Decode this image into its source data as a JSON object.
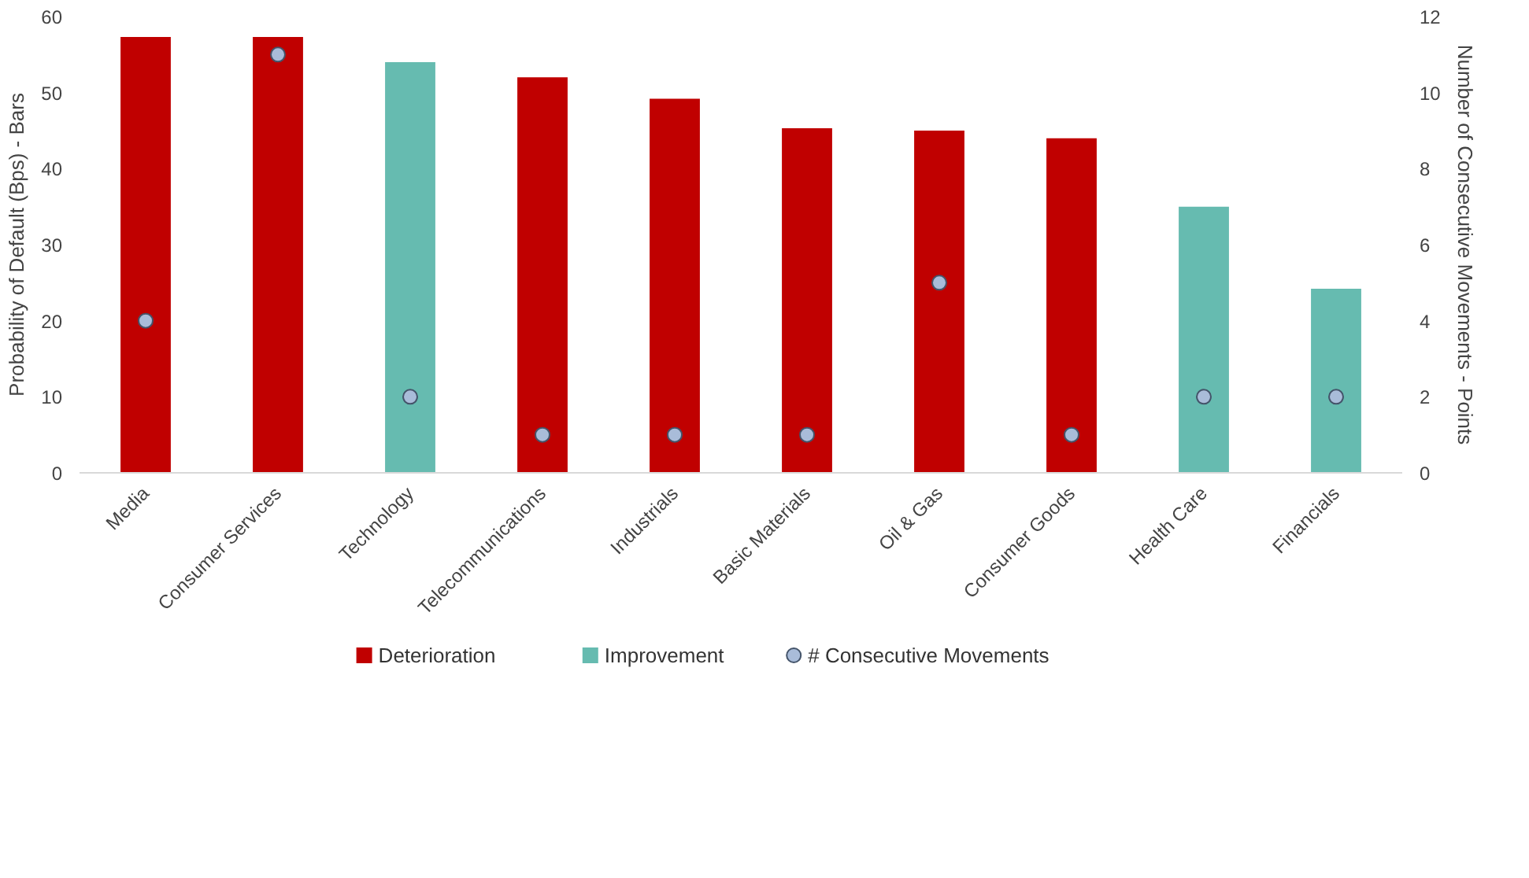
{
  "chart_data": {
    "type": "bar",
    "categories": [
      "Media",
      "Consumer Services",
      "Technology",
      "Telecommunications",
      "Industrials",
      "Basic Materials",
      "Oil & Gas",
      "Consumer Goods",
      "Health Care",
      "Financials"
    ],
    "ylabel": "Probability of Default (Bps) - Bars",
    "y2label": "Number of Consecutive Movements - Points",
    "ylim": [
      0,
      60
    ],
    "yticks": [
      0,
      10,
      20,
      30,
      40,
      50,
      60
    ],
    "y2lim": [
      0,
      12
    ],
    "y2ticks": [
      0,
      2,
      4,
      6,
      8,
      10,
      12
    ],
    "legend": "bottom",
    "grid": false,
    "series": [
      {
        "name": "Deterioration",
        "color": "#c00000",
        "values": [
          57.3,
          57.3,
          null,
          52,
          49.2,
          45.3,
          45,
          44,
          null,
          null
        ]
      },
      {
        "name": "Improvement",
        "color": "#66bbb0",
        "values": [
          null,
          null,
          54,
          null,
          null,
          null,
          null,
          null,
          35,
          24.2
        ]
      },
      {
        "name": "# Consecutive Movements",
        "type": "scatter",
        "axis": "y2",
        "marker": "circle",
        "color": "#a9bcd9",
        "values": [
          4,
          11,
          2,
          1,
          1,
          1,
          5,
          1,
          2,
          2
        ]
      }
    ]
  }
}
